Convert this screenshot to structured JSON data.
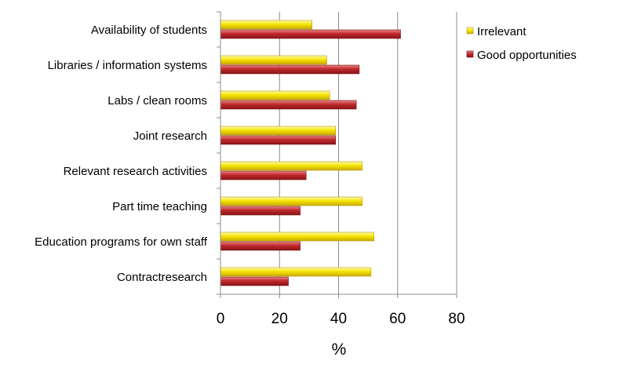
{
  "chart_data": {
    "type": "bar",
    "orientation": "horizontal",
    "categories": [
      "Availability of students",
      "Libraries / information systems",
      "Labs / clean rooms",
      "Joint research",
      "Relevant research activities",
      "Part time teaching",
      "Education programs for own staff",
      "Contractresearch"
    ],
    "series": [
      {
        "name": "Irrelevant",
        "color": "#f2e200",
        "values": [
          31,
          36,
          37,
          39,
          48,
          48,
          52,
          51
        ]
      },
      {
        "name": "Good opportunities",
        "color": "#c0282c",
        "values": [
          61,
          47,
          46,
          39,
          29,
          27,
          27,
          23
        ]
      }
    ],
    "title": "",
    "xlabel": "%",
    "ylabel": "",
    "xlim": [
      0,
      80
    ],
    "xticks": [
      "0",
      "20",
      "40",
      "60",
      "80"
    ],
    "grid": "vertical major gridlines",
    "legend": "right"
  }
}
